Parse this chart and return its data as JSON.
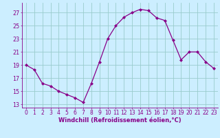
{
  "x": [
    0,
    1,
    2,
    3,
    4,
    5,
    6,
    7,
    8,
    9,
    10,
    11,
    12,
    13,
    14,
    15,
    16,
    17,
    18,
    19,
    20,
    21,
    22,
    23
  ],
  "y": [
    19,
    18.3,
    16.2,
    15.8,
    15.0,
    14.5,
    14.0,
    13.3,
    16.2,
    19.5,
    23.0,
    25.0,
    26.3,
    27.0,
    27.5,
    27.3,
    26.2,
    25.8,
    22.8,
    19.8,
    21.0,
    21.0,
    19.5,
    18.5
  ],
  "line_color": "#880088",
  "marker": "D",
  "marker_size": 2.0,
  "bg_color": "#cceeff",
  "grid_color": "#99cccc",
  "xlabel": "Windchill (Refroidissement éolien,°C)",
  "xlabel_color": "#880088",
  "tick_color": "#880088",
  "yticks": [
    13,
    15,
    17,
    19,
    21,
    23,
    25,
    27
  ],
  "xticks": [
    0,
    1,
    2,
    3,
    4,
    5,
    6,
    7,
    8,
    9,
    10,
    11,
    12,
    13,
    14,
    15,
    16,
    17,
    18,
    19,
    20,
    21,
    22,
    23
  ],
  "ylim": [
    12.5,
    28.5
  ],
  "xlim": [
    -0.5,
    23.5
  ],
  "tick_fontsize": 5.5,
  "xlabel_fontsize": 6.0,
  "linewidth": 0.9
}
